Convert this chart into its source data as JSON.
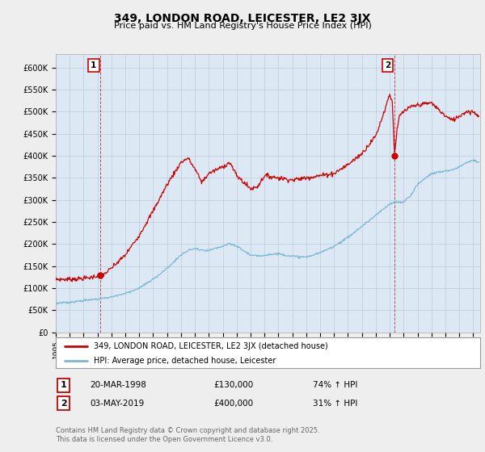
{
  "title": "349, LONDON ROAD, LEICESTER, LE2 3JX",
  "subtitle": "Price paid vs. HM Land Registry's House Price Index (HPI)",
  "ylabel_ticks": [
    "£0",
    "£50K",
    "£100K",
    "£150K",
    "£200K",
    "£250K",
    "£300K",
    "£350K",
    "£400K",
    "£450K",
    "£500K",
    "£550K",
    "£600K"
  ],
  "ytick_vals": [
    0,
    50000,
    100000,
    150000,
    200000,
    250000,
    300000,
    350000,
    400000,
    450000,
    500000,
    550000,
    600000
  ],
  "ylim": [
    0,
    630000
  ],
  "xlim_start": 1995.0,
  "xlim_end": 2025.5,
  "red_line_color": "#cc0000",
  "blue_line_color": "#7ab8d4",
  "marker1_date": 1998.22,
  "marker1_price": 130000,
  "marker2_date": 2019.34,
  "marker2_price": 400000,
  "vline1_x": 1998.22,
  "vline2_x": 2019.34,
  "legend_label_red": "349, LONDON ROAD, LEICESTER, LE2 3JX (detached house)",
  "legend_label_blue": "HPI: Average price, detached house, Leicester",
  "annotation1": [
    "1",
    "20-MAR-1998",
    "£130,000",
    "74% ↑ HPI"
  ],
  "annotation2": [
    "2",
    "03-MAY-2019",
    "£400,000",
    "31% ↑ HPI"
  ],
  "footer": "Contains HM Land Registry data © Crown copyright and database right 2025.\nThis data is licensed under the Open Government Licence v3.0.",
  "bg_color": "#eeeeee",
  "plot_bg_color": "#dce9f5",
  "grid_color": "#bbccdd",
  "red_prop_key_years": [
    1995.0,
    1996.0,
    1997.0,
    1997.5,
    1998.0,
    1998.5,
    1999.0,
    2000.0,
    2001.0,
    2002.0,
    2003.0,
    2004.0,
    2004.5,
    2005.0,
    2005.5,
    2006.0,
    2007.0,
    2007.5,
    2008.0,
    2009.0,
    2009.5,
    2010.0,
    2011.0,
    2012.0,
    2013.0,
    2014.0,
    2015.0,
    2016.0,
    2017.0,
    2018.0,
    2018.5,
    2019.0,
    2019.2,
    2019.34,
    2019.5,
    2019.7,
    2020.0,
    2020.5,
    2021.0,
    2022.0,
    2022.5,
    2023.0,
    2023.5,
    2024.0,
    2024.5,
    2025.0,
    2025.4
  ],
  "red_prop_key_vals": [
    120000,
    120000,
    122000,
    124000,
    128000,
    132000,
    145000,
    175000,
    220000,
    275000,
    335000,
    385000,
    395000,
    370000,
    340000,
    360000,
    375000,
    385000,
    355000,
    325000,
    330000,
    355000,
    350000,
    345000,
    350000,
    355000,
    360000,
    380000,
    405000,
    445000,
    490000,
    540000,
    520000,
    400000,
    450000,
    490000,
    500000,
    510000,
    515000,
    520000,
    505000,
    490000,
    480000,
    490000,
    500000,
    500000,
    490000
  ],
  "blue_hpi_key_years": [
    1995.0,
    1996.0,
    1997.0,
    1998.0,
    1999.0,
    2000.0,
    2001.0,
    2002.0,
    2003.0,
    2004.0,
    2004.5,
    2005.0,
    2005.5,
    2006.0,
    2007.0,
    2007.5,
    2008.0,
    2008.5,
    2009.0,
    2009.5,
    2010.0,
    2011.0,
    2012.0,
    2013.0,
    2014.0,
    2015.0,
    2016.0,
    2017.0,
    2018.0,
    2019.0,
    2019.34,
    2020.0,
    2020.5,
    2021.0,
    2022.0,
    2023.0,
    2023.5,
    2024.0,
    2024.5,
    2025.0,
    2025.4
  ],
  "blue_hpi_key_vals": [
    65000,
    68000,
    72000,
    75000,
    80000,
    88000,
    100000,
    120000,
    145000,
    175000,
    185000,
    190000,
    185000,
    185000,
    195000,
    200000,
    195000,
    185000,
    175000,
    172000,
    175000,
    178000,
    172000,
    170000,
    180000,
    195000,
    215000,
    240000,
    265000,
    290000,
    295000,
    295000,
    310000,
    335000,
    360000,
    365000,
    368000,
    375000,
    385000,
    390000,
    385000
  ]
}
